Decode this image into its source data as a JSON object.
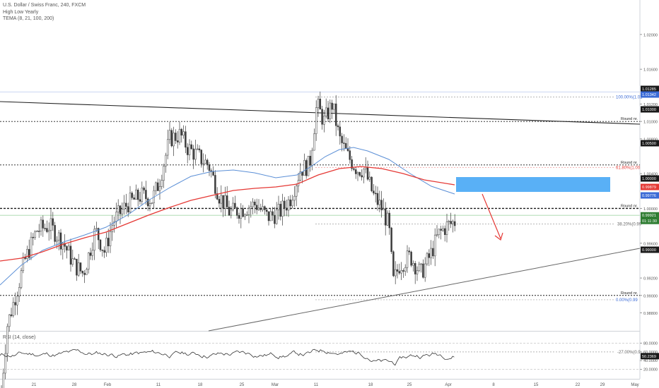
{
  "header": {
    "symbol_line": "U.S. Dollar / Swiss Franc, 240, FXCM",
    "indicator_1": "High Low Yearly",
    "indicator_2": "TEMA (8, 21, 100, 200)"
  },
  "rsi": {
    "label": "RSI (14, close)",
    "current": "50.2369",
    "levels": [
      "80.0000",
      "60.0000",
      "40.0000",
      "20.0000"
    ]
  },
  "colors": {
    "up": "#26a69a",
    "down": "#ef5350",
    "candle": "#3c3c3c",
    "ema_red": "#e53935",
    "ema_blue": "#5b8fd6",
    "zone": "#2196f3",
    "arrow": "#e53935",
    "price_badge": "#2e7d32"
  },
  "chart_data": {
    "type": "candlestick",
    "symbol": "USDCHF",
    "timeframe": "240",
    "price_axis": {
      "range": [
        0.977,
        1.044
      ],
      "ticks": [
        "1.04000",
        "1.03000",
        "1.02000",
        "1.01000",
        "1.00000",
        "0.99000",
        "0.98000"
      ],
      "minor_ticks": [
        "1.03400",
        "1.02600",
        "1.01600",
        "1.01200",
        "1.00800",
        "1.00400",
        "0.99600",
        "0.99200",
        "0.98800",
        "0.98400",
        "0.98000"
      ]
    },
    "time_axis": {
      "labels": [
        "21",
        "28",
        "Feb",
        "11",
        "18",
        "25",
        "Mar",
        "11",
        "18",
        "25",
        "Apr",
        "8",
        "15",
        "22",
        "29",
        "May"
      ]
    },
    "current_price": "0.99921",
    "countdown": "01:11:30",
    "badges": [
      {
        "value": "1.01285",
        "color": "#1a1a1a"
      },
      {
        "value": "1.01342",
        "color": "#3b6bd6"
      },
      {
        "value": "1.01000",
        "color": "#1a1a1a"
      },
      {
        "value": "1.00500",
        "color": "#1a1a1a"
      },
      {
        "value": "1.00000",
        "color": "#1a1a1a"
      },
      {
        "value": "0.99879",
        "color": "#e53935"
      },
      {
        "value": "0.99776",
        "color": "#3b6bd6"
      },
      {
        "value": "0.99000",
        "color": "#1a1a1a"
      }
    ],
    "round_levels": [
      {
        "price": 1.01,
        "label": "Round nr."
      },
      {
        "price": 1.005,
        "label": "Round nr."
      },
      {
        "price": 1.0,
        "label": "Round nr."
      },
      {
        "price": 0.99,
        "label": "Round nr."
      }
    ],
    "fib_levels": [
      {
        "label": "100.00%(1.01",
        "price": 1.0128
      },
      {
        "label": "61.80%(1.00",
        "price": 1.0047
      },
      {
        "label": "38.20%(0.99",
        "price": 0.9982
      },
      {
        "label": "0.00%(0.99",
        "price": 0.9895
      },
      {
        "label": "-27.00%(0.9",
        "price": 0.9835
      }
    ],
    "candles_summary": [
      0.979,
      0.993,
      0.996,
      0.992,
      0.996,
      0.999,
      1.003,
      1.007,
      1.006,
      1.002,
      0.998,
      0.999,
      0.997,
      0.999,
      1.004,
      1.012,
      1.008,
      1.002,
      0.996,
      0.991,
      0.995,
      0.996,
      0.993,
      0.995,
      0.997,
      0.996
    ]
  }
}
